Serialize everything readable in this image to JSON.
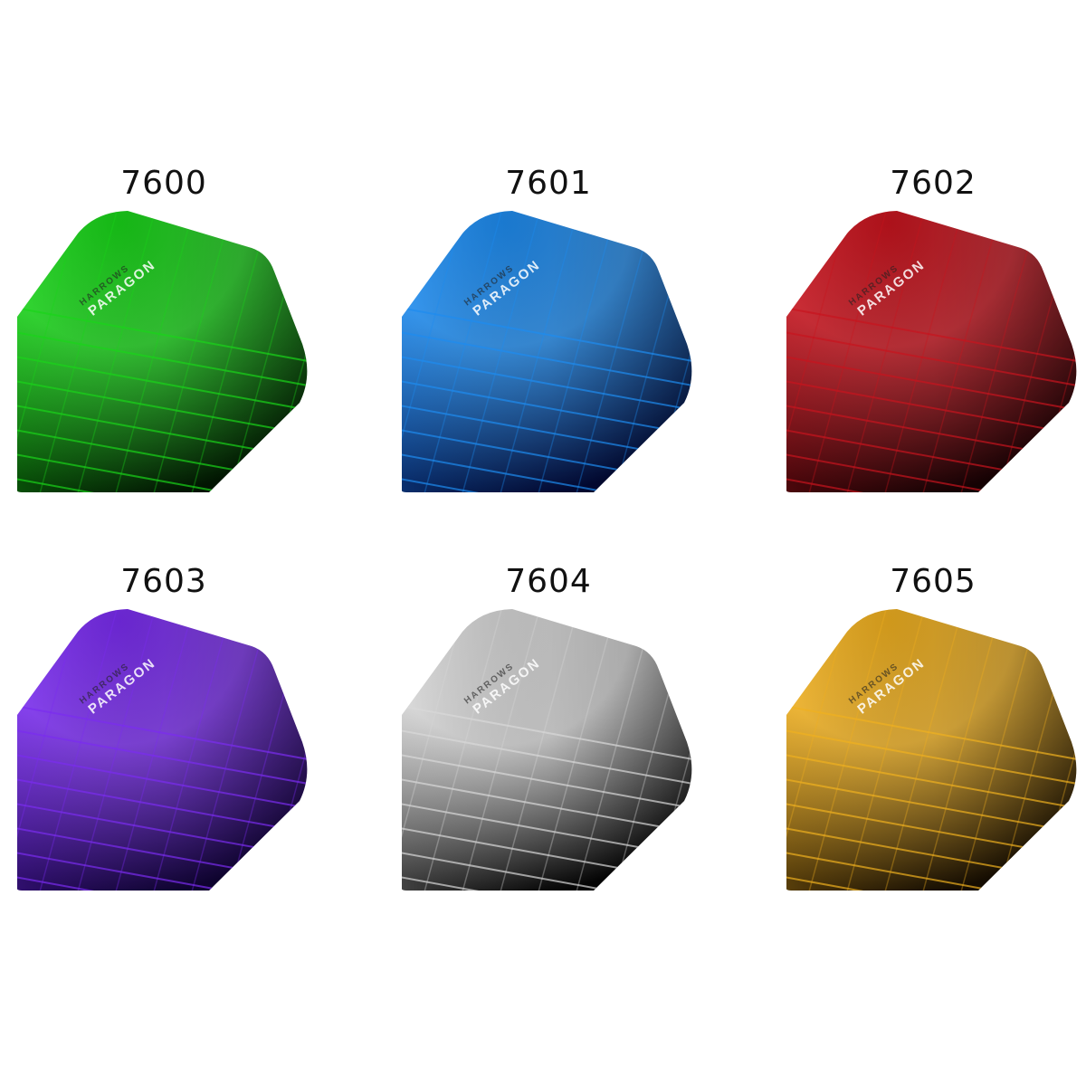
{
  "flights": [
    {
      "code": "7600",
      "brand": "HARROWS",
      "model": "PARAGON",
      "color": "#19d419",
      "dark": "#021a02"
    },
    {
      "code": "7601",
      "brand": "HARROWS",
      "model": "PARAGON",
      "color": "#1e8cf0",
      "dark": "#020a3a"
    },
    {
      "code": "7602",
      "brand": "HARROWS",
      "model": "PARAGON",
      "color": "#c8141e",
      "dark": "#1a0204"
    },
    {
      "code": "7603",
      "brand": "HARROWS",
      "model": "PARAGON",
      "color": "#7a2cf0",
      "dark": "#12043a"
    },
    {
      "code": "7604",
      "brand": "HARROWS",
      "model": "PARAGON",
      "color": "#d8d8d8",
      "dark": "#050505"
    },
    {
      "code": "7605",
      "brand": "HARROWS",
      "model": "PARAGON",
      "color": "#f0b020",
      "dark": "#1a1002"
    }
  ]
}
